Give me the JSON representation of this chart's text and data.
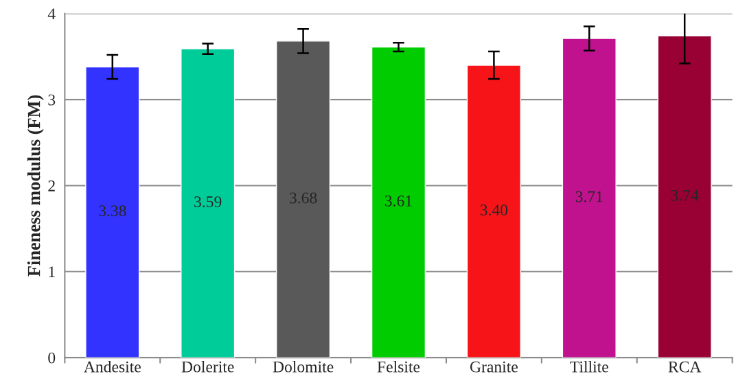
{
  "chart_data": {
    "type": "bar",
    "ylabel": "Fineness modulus (FM)",
    "categories": [
      "Andesite",
      "Dolerite",
      "Dolomite",
      "Felsite",
      "Granite",
      "Tillite",
      "RCA"
    ],
    "values": [
      3.38,
      3.59,
      3.68,
      3.61,
      3.4,
      3.71,
      3.74
    ],
    "value_labels": [
      "3.38",
      "3.59",
      "3.68",
      "3.61",
      "3.40",
      "3.71",
      "3.74"
    ],
    "errors": [
      0.14,
      0.06,
      0.14,
      0.05,
      0.16,
      0.14,
      0.32
    ],
    "colors": [
      "#3333ff",
      "#00cc99",
      "#595959",
      "#00cc00",
      "#f71418",
      "#c0128e",
      "#990033"
    ],
    "ylim": [
      0,
      4
    ],
    "yticks": [
      0,
      1,
      2,
      3,
      4
    ],
    "grid": "y"
  }
}
